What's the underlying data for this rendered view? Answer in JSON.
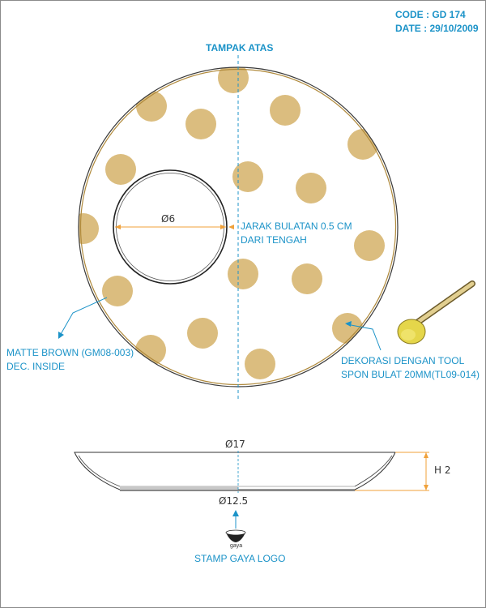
{
  "header": {
    "code": "CODE : GD 174",
    "date": "DATE : 29/10/2009"
  },
  "top_view": {
    "title": "TAMPAK ATAS",
    "inner_dim": "Ø6",
    "spacing_note_line1": "JARAK BULATAN 0.5 CM",
    "spacing_note_line2": "DARI TENGAH",
    "glaze_line1": "MATTE BROWN (GM08-003)",
    "glaze_line2": "DEC. INSIDE",
    "tool_line1": "DEKORASI DENGAN TOOL",
    "tool_line2": "SPON BULAT 20MM(TL09-014)"
  },
  "side_view": {
    "outer_dim": "Ø17",
    "base_dim": "Ø12.5",
    "height_dim": "H 2"
  },
  "logo": {
    "brand_text": "gaya",
    "label": "STAMP GAYA LOGO"
  },
  "colors": {
    "dot": "#dbbd7f",
    "rim": "#b08a3c",
    "accent": "#1c93c8",
    "dim_line": "#f0a13a"
  }
}
